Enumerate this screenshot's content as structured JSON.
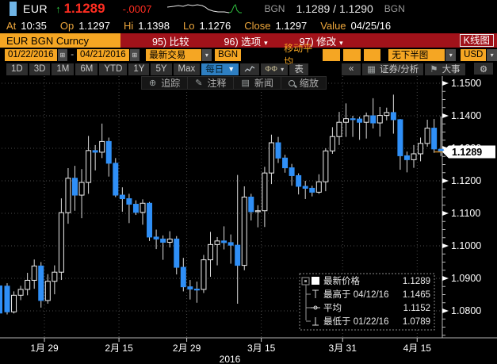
{
  "icons": {
    "caret_down": "▾",
    "caret_down_big": "▼",
    "calendar": "⊞",
    "collapse": "«",
    "flag": "⚑",
    "gear": "⚙",
    "crosshair": "⊕",
    "pencil": "✎",
    "news": "▤",
    "up_arrow": "↑",
    "bars": "▦",
    "candle_pair": "ΦΦ"
  },
  "window": {
    "asset": "EUR",
    "last": "1.1289",
    "change": "-.0007",
    "source_left": "BGN",
    "bid_ask": "1.1289 / 1.1290",
    "source_right": "BGN",
    "sparkline": {
      "white": [
        [
          0,
          6
        ],
        [
          8,
          5
        ],
        [
          14,
          4
        ],
        [
          20,
          5
        ],
        [
          26,
          3
        ],
        [
          32,
          4
        ],
        [
          38,
          3
        ],
        [
          44,
          4
        ],
        [
          48,
          6
        ],
        [
          52,
          9
        ],
        [
          58,
          11
        ],
        [
          64,
          12
        ],
        [
          72,
          12
        ],
        [
          78,
          13
        ]
      ],
      "green": [
        [
          78,
          13
        ],
        [
          81,
          12
        ],
        [
          84,
          5
        ],
        [
          86,
          3
        ],
        [
          88,
          10
        ],
        [
          91,
          13
        ],
        [
          94,
          13
        ]
      ]
    }
  },
  "quote_bar": {
    "items": [
      {
        "label": "At",
        "value": "10:35"
      },
      {
        "label": "Op",
        "value": "1.1297"
      },
      {
        "label": "Hi",
        "value": "1.1398"
      },
      {
        "label": "Lo",
        "value": "1.1276"
      },
      {
        "label": "Close",
        "value": "1.1297"
      },
      {
        "label": "Value",
        "value": "04/25/16"
      }
    ]
  },
  "menu_bar": {
    "security": "EUR BGN Curncy",
    "items": [
      {
        "label": "95) 比较",
        "caret": ""
      },
      {
        "label": "96) 选项",
        "caret": "▾"
      },
      {
        "label": "97) 修改",
        "caret": "▾"
      }
    ],
    "chart_type": "K线图"
  },
  "controls": {
    "date_from": "01/22/2016",
    "separator": "-",
    "date_to": "04/21/2016",
    "price_mode": "最新交易",
    "source": "BGN",
    "ma_label": "移动平均",
    "lower_panel": "无下半图",
    "currency": "USD"
  },
  "range_bar": {
    "ranges": [
      "1D",
      "3D",
      "1M",
      "6M",
      "YTD",
      "1Y",
      "5Y",
      "Max"
    ],
    "frequency": "每日",
    "table": "表",
    "security_analysis": "证券/分析",
    "events": "大事"
  },
  "chart_toolbar": {
    "track": "追踪",
    "annotate": "注释",
    "news": "新闻",
    "zoom": "缩放"
  },
  "chart_data": {
    "type": "candlestick",
    "x_axis": {
      "year": "2016",
      "labels": [
        {
          "text": "1月 29",
          "tick_after_index": 5
        },
        {
          "text": "2月 15",
          "tick_after_index": 16
        },
        {
          "text": "2月 29",
          "tick_after_index": 26
        },
        {
          "text": "3月 15",
          "tick_after_index": 37
        },
        {
          "text": "3月 31",
          "tick_after_index": 49
        },
        {
          "text": "4月 15",
          "tick_after_index": 60
        }
      ]
    },
    "y_axis": {
      "ticks": [
        "1.1500",
        "1.1400",
        "1.1300",
        "1.1200",
        "1.1100",
        "1.1000",
        "1.0900",
        "1.0800"
      ],
      "major_step": 0.01,
      "minor_step": 0.0025
    },
    "last_price": {
      "text": "1.1289",
      "value": 1.1289
    },
    "clipped_candle": {
      "top": 1.0878,
      "bottom": 1.0792
    },
    "legend": [
      {
        "icon": "swatch",
        "label": "最新价格",
        "value": "1.1289"
      },
      {
        "icon": "high",
        "label": "最高于 04/12/16",
        "value": "1.1465"
      },
      {
        "icon": "avg",
        "label": "平均",
        "value": "1.1152"
      },
      {
        "icon": "low",
        "label": "最低于 01/22/16",
        "value": "1.0789"
      }
    ],
    "colors": {
      "up_fill": "#000000",
      "up_border": "#ededed",
      "down": "#2f8ff7",
      "wick": "#dcdcdc",
      "grid": "#4a4a4a",
      "axis": "#b5b5b5",
      "last_price_line": "#c9821e",
      "tag_bg": "#ffffff",
      "tag_text": "#000000"
    },
    "ohlc": [
      {
        "d": "01/22",
        "o": 1.0876,
        "h": 1.0885,
        "l": 1.0789,
        "c": 1.0797
      },
      {
        "d": "01/25",
        "o": 1.0797,
        "h": 1.086,
        "l": 1.0792,
        "c": 1.0848
      },
      {
        "d": "01/26",
        "o": 1.0848,
        "h": 1.0877,
        "l": 1.0833,
        "c": 1.0866
      },
      {
        "d": "01/27",
        "o": 1.0866,
        "h": 1.0917,
        "l": 1.0848,
        "c": 1.0894
      },
      {
        "d": "01/28",
        "o": 1.0894,
        "h": 1.0958,
        "l": 1.0868,
        "c": 1.0938
      },
      {
        "d": "01/29",
        "o": 1.0938,
        "h": 1.095,
        "l": 1.081,
        "c": 1.0832
      },
      {
        "d": "02/01",
        "o": 1.0832,
        "h": 1.0913,
        "l": 1.0822,
        "c": 1.0891
      },
      {
        "d": "02/02",
        "o": 1.0891,
        "h": 1.094,
        "l": 1.0851,
        "c": 1.0919
      },
      {
        "d": "02/03",
        "o": 1.0919,
        "h": 1.1146,
        "l": 1.0895,
        "c": 1.1102
      },
      {
        "d": "02/04",
        "o": 1.1102,
        "h": 1.1239,
        "l": 1.1068,
        "c": 1.1208
      },
      {
        "d": "02/05",
        "o": 1.1208,
        "h": 1.1246,
        "l": 1.1108,
        "c": 1.1156
      },
      {
        "d": "02/08",
        "o": 1.1156,
        "h": 1.1236,
        "l": 1.1085,
        "c": 1.1195
      },
      {
        "d": "02/09",
        "o": 1.1195,
        "h": 1.1338,
        "l": 1.116,
        "c": 1.1293
      },
      {
        "d": "02/10",
        "o": 1.1293,
        "h": 1.131,
        "l": 1.1232,
        "c": 1.1288
      },
      {
        "d": "02/11",
        "o": 1.1288,
        "h": 1.1376,
        "l": 1.127,
        "c": 1.1321
      },
      {
        "d": "02/12",
        "o": 1.1321,
        "h": 1.1333,
        "l": 1.1213,
        "c": 1.1254
      },
      {
        "d": "02/15",
        "o": 1.1254,
        "h": 1.127,
        "l": 1.115,
        "c": 1.1156
      },
      {
        "d": "02/16",
        "o": 1.1156,
        "h": 1.118,
        "l": 1.1105,
        "c": 1.1145
      },
      {
        "d": "02/17",
        "o": 1.1145,
        "h": 1.116,
        "l": 1.107,
        "c": 1.1128
      },
      {
        "d": "02/18",
        "o": 1.1128,
        "h": 1.114,
        "l": 1.1095,
        "c": 1.1103
      },
      {
        "d": "02/19",
        "o": 1.1103,
        "h": 1.1143,
        "l": 1.1065,
        "c": 1.1131
      },
      {
        "d": "02/22",
        "o": 1.1131,
        "h": 1.1135,
        "l": 1.1015,
        "c": 1.1027
      },
      {
        "d": "02/23",
        "o": 1.1027,
        "h": 1.105,
        "l": 1.099,
        "c": 1.1021
      },
      {
        "d": "02/24",
        "o": 1.1021,
        "h": 1.1032,
        "l": 1.0957,
        "c": 1.1011
      },
      {
        "d": "02/25",
        "o": 1.1011,
        "h": 1.1045,
        "l": 1.0995,
        "c": 1.1021
      },
      {
        "d": "02/26",
        "o": 1.1021,
        "h": 1.103,
        "l": 1.0912,
        "c": 1.0934
      },
      {
        "d": "02/29",
        "o": 1.0934,
        "h": 1.0963,
        "l": 1.086,
        "c": 1.0874
      },
      {
        "d": "03/01",
        "o": 1.0874,
        "h": 1.0895,
        "l": 1.0835,
        "c": 1.0867
      },
      {
        "d": "03/02",
        "o": 1.0867,
        "h": 1.089,
        "l": 1.0825,
        "c": 1.0866
      },
      {
        "d": "03/03",
        "o": 1.0866,
        "h": 1.0972,
        "l": 1.0855,
        "c": 1.0957
      },
      {
        "d": "03/04",
        "o": 1.0957,
        "h": 1.1043,
        "l": 1.0905,
        "c": 1.1004
      },
      {
        "d": "03/07",
        "o": 1.1004,
        "h": 1.1027,
        "l": 1.094,
        "c": 1.1015
      },
      {
        "d": "03/08",
        "o": 1.1015,
        "h": 1.106,
        "l": 1.0989,
        "c": 1.101
      },
      {
        "d": "03/09",
        "o": 1.101,
        "h": 1.1035,
        "l": 1.0945,
        "c": 1.1002
      },
      {
        "d": "03/10",
        "o": 1.1002,
        "h": 1.1218,
        "l": 1.0822,
        "c": 1.094
      },
      {
        "d": "03/11",
        "o": 1.094,
        "h": 1.1183,
        "l": 1.0925,
        "c": 1.115
      },
      {
        "d": "03/14",
        "o": 1.115,
        "h": 1.116,
        "l": 1.1078,
        "c": 1.1105
      },
      {
        "d": "03/15",
        "o": 1.1105,
        "h": 1.1125,
        "l": 1.1057,
        "c": 1.1108
      },
      {
        "d": "03/16",
        "o": 1.1108,
        "h": 1.1243,
        "l": 1.1058,
        "c": 1.1224
      },
      {
        "d": "03/17",
        "o": 1.1224,
        "h": 1.1342,
        "l": 1.119,
        "c": 1.1317
      },
      {
        "d": "03/18",
        "o": 1.1317,
        "h": 1.1335,
        "l": 1.1255,
        "c": 1.127
      },
      {
        "d": "03/21",
        "o": 1.127,
        "h": 1.128,
        "l": 1.1225,
        "c": 1.124
      },
      {
        "d": "03/22",
        "o": 1.124,
        "h": 1.1252,
        "l": 1.1185,
        "c": 1.1216
      },
      {
        "d": "03/23",
        "o": 1.1216,
        "h": 1.1223,
        "l": 1.1158,
        "c": 1.1183
      },
      {
        "d": "03/24",
        "o": 1.1183,
        "h": 1.12,
        "l": 1.1144,
        "c": 1.1177
      },
      {
        "d": "03/25",
        "o": 1.1177,
        "h": 1.1185,
        "l": 1.1152,
        "c": 1.1165
      },
      {
        "d": "03/28",
        "o": 1.1165,
        "h": 1.122,
        "l": 1.116,
        "c": 1.1197
      },
      {
        "d": "03/29",
        "o": 1.1197,
        "h": 1.13,
        "l": 1.1168,
        "c": 1.1292
      },
      {
        "d": "03/30",
        "o": 1.1292,
        "h": 1.1365,
        "l": 1.1283,
        "c": 1.1336
      },
      {
        "d": "03/31",
        "o": 1.1336,
        "h": 1.1412,
        "l": 1.131,
        "c": 1.138
      },
      {
        "d": "04/01",
        "o": 1.138,
        "h": 1.1438,
        "l": 1.1335,
        "c": 1.1391
      },
      {
        "d": "04/04",
        "o": 1.1391,
        "h": 1.14,
        "l": 1.1335,
        "c": 1.139
      },
      {
        "d": "04/05",
        "o": 1.139,
        "h": 1.1397,
        "l": 1.1326,
        "c": 1.138
      },
      {
        "d": "04/06",
        "o": 1.138,
        "h": 1.141,
        "l": 1.133,
        "c": 1.14
      },
      {
        "d": "04/07",
        "o": 1.14,
        "h": 1.1454,
        "l": 1.1361,
        "c": 1.1378
      },
      {
        "d": "04/08",
        "o": 1.1378,
        "h": 1.1427,
        "l": 1.1336,
        "c": 1.1401
      },
      {
        "d": "04/11",
        "o": 1.1401,
        "h": 1.1425,
        "l": 1.1386,
        "c": 1.141
      },
      {
        "d": "04/12",
        "o": 1.141,
        "h": 1.1465,
        "l": 1.1345,
        "c": 1.1388
      },
      {
        "d": "04/13",
        "o": 1.1388,
        "h": 1.139,
        "l": 1.1234,
        "c": 1.1277
      },
      {
        "d": "04/14",
        "o": 1.1277,
        "h": 1.129,
        "l": 1.1226,
        "c": 1.1265
      },
      {
        "d": "04/15",
        "o": 1.1265,
        "h": 1.131,
        "l": 1.124,
        "c": 1.1283
      },
      {
        "d": "04/18",
        "o": 1.1283,
        "h": 1.1333,
        "l": 1.126,
        "c": 1.1315
      },
      {
        "d": "04/19",
        "o": 1.1315,
        "h": 1.1388,
        "l": 1.1305,
        "c": 1.1362
      },
      {
        "d": "04/20",
        "o": 1.1362,
        "h": 1.139,
        "l": 1.1286,
        "c": 1.1298
      },
      {
        "d": "04/21",
        "o": 1.1297,
        "h": 1.1398,
        "l": 1.1276,
        "c": 1.1289
      }
    ]
  }
}
